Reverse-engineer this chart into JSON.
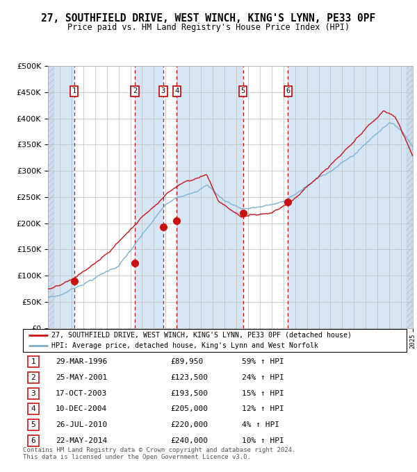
{
  "title": "27, SOUTHFIELD DRIVE, WEST WINCH, KING'S LYNN, PE33 0PF",
  "subtitle": "Price paid vs. HM Land Registry's House Price Index (HPI)",
  "x_start_year": 1994,
  "x_end_year": 2025,
  "y_min": 0,
  "y_max": 500000,
  "y_ticks": [
    0,
    50000,
    100000,
    150000,
    200000,
    250000,
    300000,
    350000,
    400000,
    450000,
    500000
  ],
  "hpi_color": "#7aafd4",
  "price_color": "#cc1111",
  "plot_bg_color": "#ffffff",
  "band_color": "#d6e6f5",
  "grid_color": "#bbbbbb",
  "sales": [
    {
      "num": 1,
      "year_f": 1996.23,
      "price": 89950,
      "label": "29-MAR-1996",
      "amount": "£89,950",
      "pct": "59%"
    },
    {
      "num": 2,
      "year_f": 2001.39,
      "price": 123500,
      "label": "25-MAY-2001",
      "amount": "£123,500",
      "pct": "24%"
    },
    {
      "num": 3,
      "year_f": 2003.79,
      "price": 193500,
      "label": "17-OCT-2003",
      "amount": "£193,500",
      "pct": "15%"
    },
    {
      "num": 4,
      "year_f": 2004.94,
      "price": 205000,
      "label": "10-DEC-2004",
      "amount": "£205,000",
      "pct": "12%"
    },
    {
      "num": 5,
      "year_f": 2010.57,
      "price": 220000,
      "label": "26-JUL-2010",
      "amount": "£220,000",
      "pct": "4%"
    },
    {
      "num": 6,
      "year_f": 2014.39,
      "price": 240000,
      "label": "22-MAY-2014",
      "amount": "£240,000",
      "pct": "10%"
    }
  ],
  "legend_line1": "27, SOUTHFIELD DRIVE, WEST WINCH, KING'S LYNN, PE33 0PF (detached house)",
  "legend_line2": "HPI: Average price, detached house, King's Lynn and West Norfolk",
  "footnote1": "Contains HM Land Registry data © Crown copyright and database right 2024.",
  "footnote2": "This data is licensed under the Open Government Licence v3.0."
}
